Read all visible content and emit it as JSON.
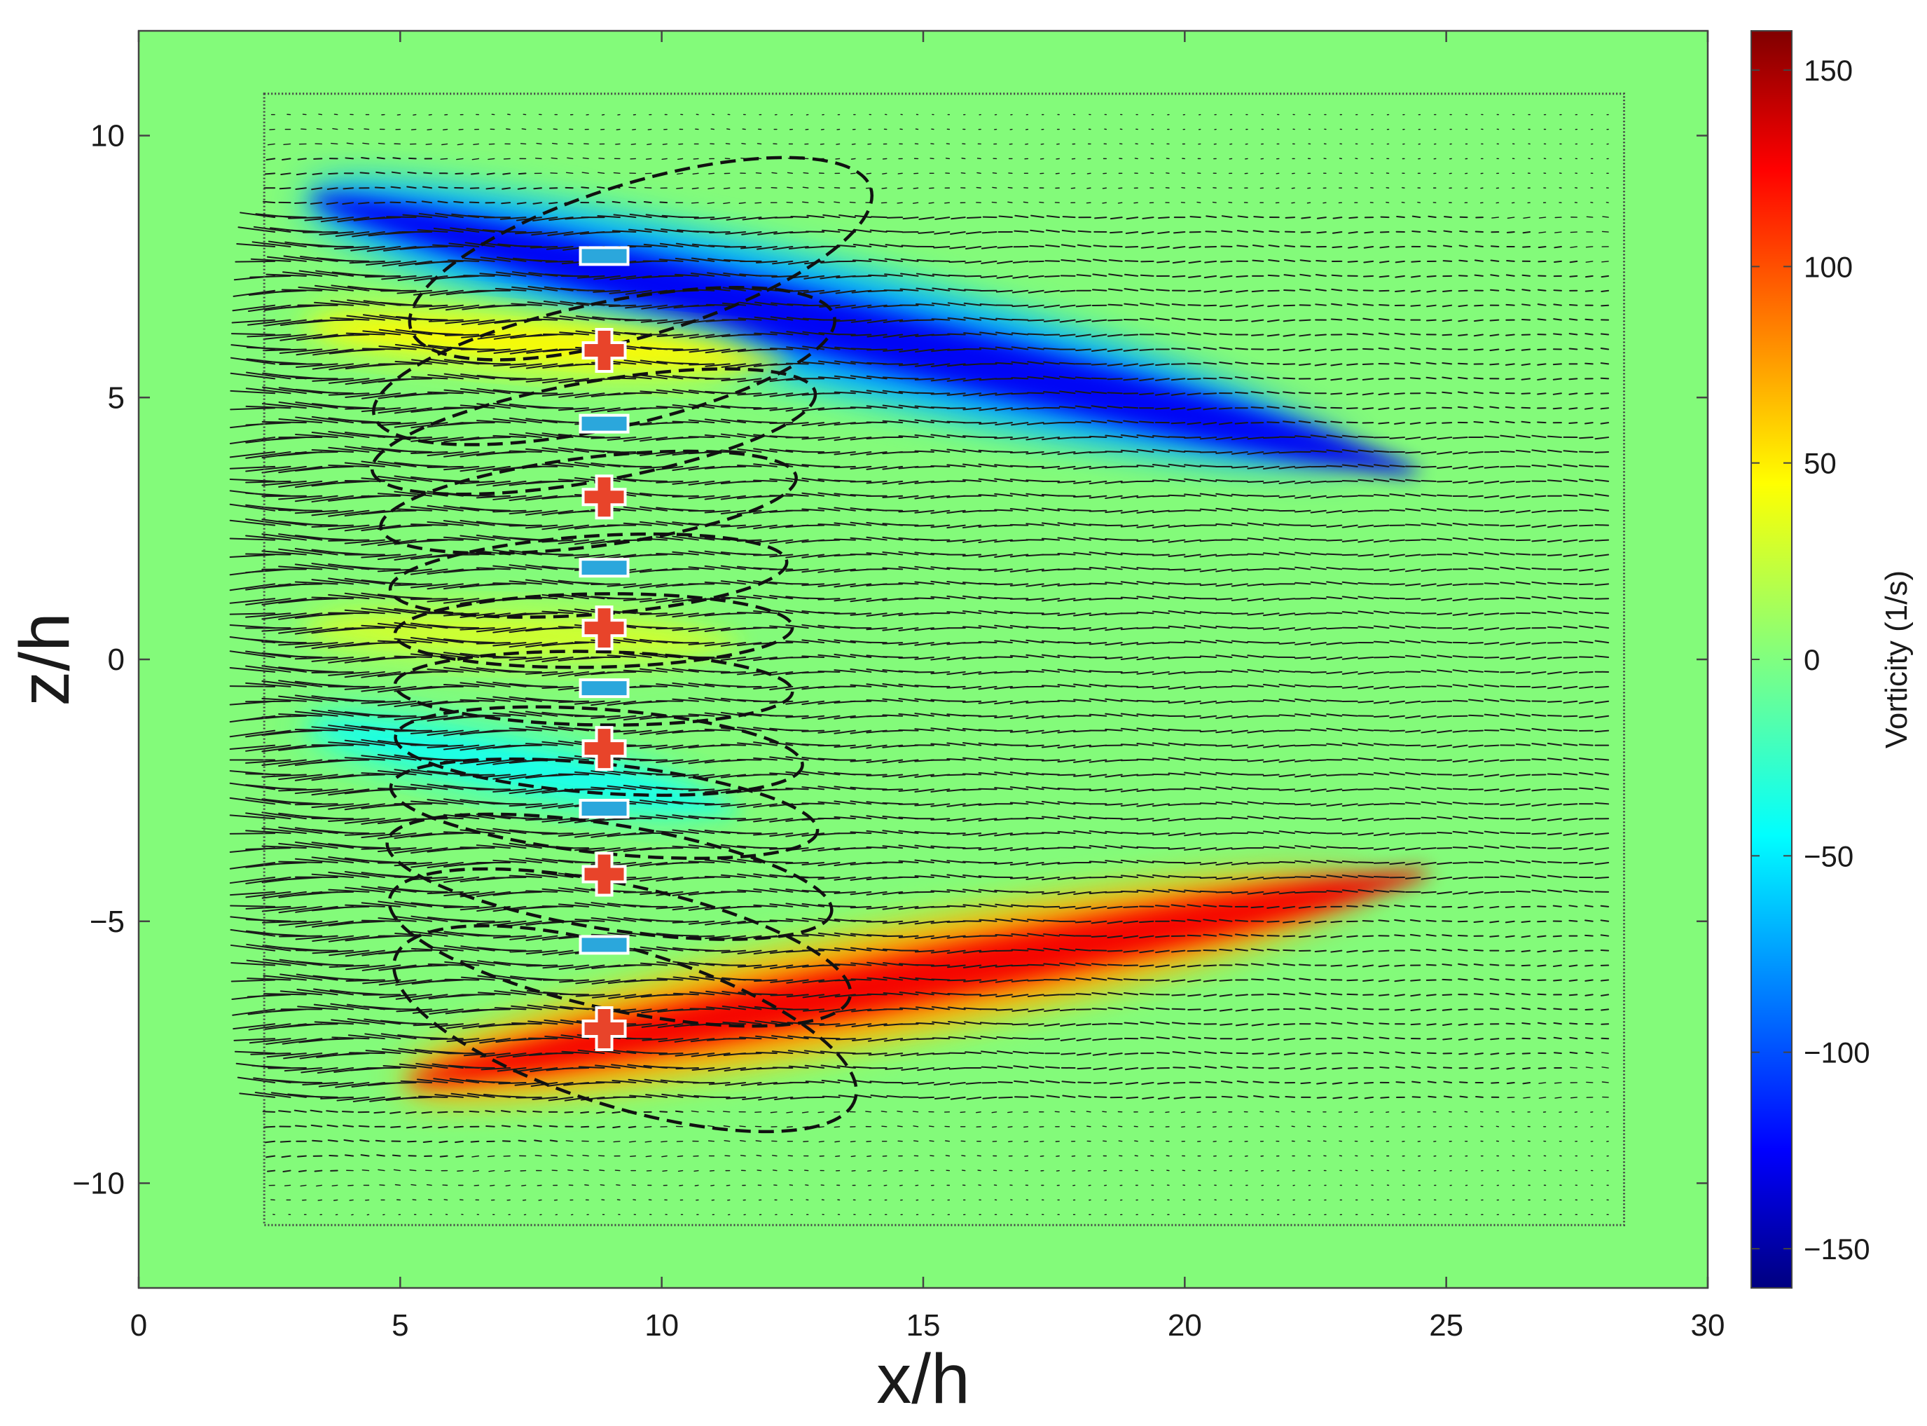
{
  "chart_data": {
    "type": "heatmap",
    "title": "",
    "xlabel": "x/h",
    "ylabel": "z/h",
    "xlim": [
      0,
      30
    ],
    "ylim": [
      -12,
      12
    ],
    "x_ticks": [
      0,
      5,
      10,
      15,
      20,
      25,
      30
    ],
    "y_ticks": [
      -10,
      -5,
      0,
      5,
      10
    ],
    "x_tick_labels": [
      "0",
      "5",
      "10",
      "15",
      "20",
      "25",
      "30"
    ],
    "y_tick_labels": [
      "−10",
      "−5",
      "0",
      "5",
      "10"
    ],
    "grid": false,
    "colorbar": {
      "label": "Vorticity (1/s)",
      "colormap": "jet",
      "range": [
        -160,
        160
      ],
      "ticks": [
        -150,
        -100,
        -50,
        0,
        50,
        100,
        150
      ],
      "tick_labels": [
        "−150",
        "−100",
        "−50",
        "0",
        "50",
        "100",
        "150"
      ]
    },
    "background_value": 0,
    "measurement_window": {
      "x": [
        2.4,
        28.4
      ],
      "z": [
        -10.8,
        10.8
      ]
    },
    "vorticity_regions": [
      {
        "name": "upper shear layer",
        "x_start": 2.5,
        "x_end": 26,
        "z_start": 9.0,
        "z_end": 3.2,
        "peak": -150,
        "sign": "negative"
      },
      {
        "name": "lower shear layer",
        "x_start": 4.5,
        "x_end": 26,
        "z_start": -8.2,
        "z_end": -3.8,
        "peak": 150,
        "sign": "positive"
      },
      {
        "name": "upper positive band",
        "x_start": 3,
        "x_end": 13,
        "z_start": 6.4,
        "z_end": 5.6,
        "peak": 55,
        "sign": "positive"
      },
      {
        "name": "lower negative band",
        "x_start": 3,
        "x_end": 12,
        "z_start": -1.2,
        "z_end": -3.0,
        "peak": -45,
        "sign": "negative"
      },
      {
        "name": "central positive band",
        "x_start": 3,
        "x_end": 12,
        "z_start": 0.6,
        "z_end": 0.3,
        "peak": 35,
        "sign": "positive"
      }
    ],
    "vortex_annotations": [
      {
        "sign": "-",
        "x": 8.9,
        "z": 7.7
      },
      {
        "sign": "+",
        "x": 8.9,
        "z": 5.9
      },
      {
        "sign": "-",
        "x": 8.9,
        "z": 4.5
      },
      {
        "sign": "+",
        "x": 8.9,
        "z": 3.1
      },
      {
        "sign": "-",
        "x": 8.9,
        "z": 1.75
      },
      {
        "sign": "+",
        "x": 8.9,
        "z": 0.6
      },
      {
        "sign": "-",
        "x": 8.9,
        "z": -0.55
      },
      {
        "sign": "+",
        "x": 8.9,
        "z": -1.7
      },
      {
        "sign": "-",
        "x": 8.9,
        "z": -2.85
      },
      {
        "sign": "+",
        "x": 8.9,
        "z": -4.1
      },
      {
        "sign": "-",
        "x": 8.9,
        "z": -5.45
      },
      {
        "sign": "+",
        "x": 8.9,
        "z": -7.05
      }
    ],
    "vortex_ellipses": [
      {
        "cx": 9.6,
        "cz": 7.65,
        "rx": 4.6,
        "rz": 1.45,
        "angle_deg": -17
      },
      {
        "cx": 8.9,
        "cz": 5.6,
        "rx": 4.5,
        "rz": 1.2,
        "angle_deg": -12
      },
      {
        "cx": 8.7,
        "cz": 4.35,
        "rx": 4.3,
        "rz": 0.95,
        "angle_deg": -10
      },
      {
        "cx": 8.6,
        "cz": 3.0,
        "rx": 4.0,
        "rz": 0.85,
        "angle_deg": -7
      },
      {
        "cx": 8.6,
        "cz": 1.6,
        "rx": 3.8,
        "rz": 0.75,
        "angle_deg": -4
      },
      {
        "cx": 8.7,
        "cz": 0.55,
        "rx": 3.8,
        "rz": 0.7,
        "angle_deg": -1
      },
      {
        "cx": 8.7,
        "cz": -0.55,
        "rx": 3.8,
        "rz": 0.7,
        "angle_deg": 1
      },
      {
        "cx": 8.8,
        "cz": -1.75,
        "rx": 3.9,
        "rz": 0.8,
        "angle_deg": 4
      },
      {
        "cx": 8.9,
        "cz": -2.85,
        "rx": 4.1,
        "rz": 0.85,
        "angle_deg": 6
      },
      {
        "cx": 9.0,
        "cz": -4.15,
        "rx": 4.3,
        "rz": 1.0,
        "angle_deg": 9
      },
      {
        "cx": 9.2,
        "cz": -5.5,
        "rx": 4.5,
        "rz": 1.2,
        "angle_deg": 12
      },
      {
        "cx": 9.3,
        "cz": -7.05,
        "rx": 4.6,
        "rz": 1.5,
        "angle_deg": 17
      }
    ],
    "vector_field": {
      "x_range": [
        2.6,
        28.2
      ],
      "z_range": [
        -10.6,
        10.6
      ],
      "dx": 0.3,
      "dz": 0.28,
      "description": "velocity arrows, strongest near x/h 3-10, decaying downstream"
    }
  }
}
